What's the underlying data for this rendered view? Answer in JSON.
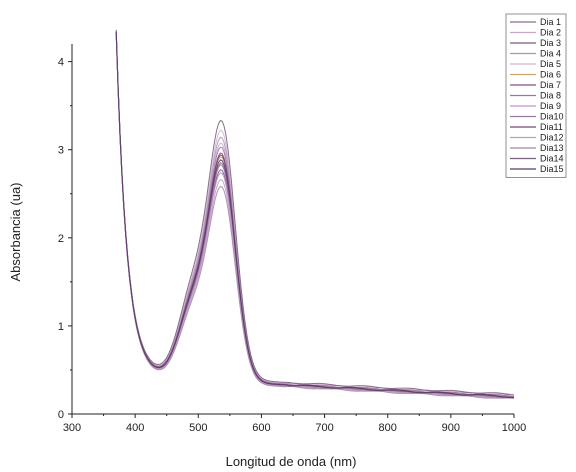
{
  "chart_data": {
    "type": "line",
    "xlabel": "Longitud de onda (nm)",
    "ylabel": "Absorbancia (ua)",
    "xlim": [
      300,
      1000
    ],
    "ylim": [
      0,
      4.2
    ],
    "xticks": [
      "300",
      "400",
      "500",
      "600",
      "700",
      "800",
      "900",
      "1000"
    ],
    "yticks": [
      "0",
      "1",
      "2",
      "3",
      "4"
    ],
    "grid": false,
    "legend_position": "top-right",
    "series": [
      {
        "name": "Dia 1",
        "color": "#8c6d8c",
        "peak": 2.62
      },
      {
        "name": "Dia 2",
        "color": "#c8a8c8",
        "peak": 2.82
      },
      {
        "name": "Dia 3",
        "color": "#7a5a7a",
        "peak": 2.55
      },
      {
        "name": "Dia 4",
        "color": "#b090b8",
        "peak": 2.88
      },
      {
        "name": "Dia 5",
        "color": "#d0b4d0",
        "peak": 2.95
      },
      {
        "name": "Dia 6",
        "color": "#c9a96e",
        "peak": 2.68
      },
      {
        "name": "Dia 7",
        "color": "#8a4a8a",
        "peak": 2.72
      },
      {
        "name": "Dia 8",
        "color": "#a070a8",
        "peak": 2.6
      },
      {
        "name": "Dia 9",
        "color": "#c090c8",
        "peak": 2.52
      },
      {
        "name": "Dia10",
        "color": "#9a7aa0",
        "peak": 2.78
      },
      {
        "name": "Dia11",
        "color": "#704870",
        "peak": 2.7
      },
      {
        "name": "Dia12",
        "color": "#b8a0c0",
        "peak": 2.45
      },
      {
        "name": "Dia13",
        "color": "#a888a8",
        "peak": 2.38
      },
      {
        "name": "Dia14",
        "color": "#7a6080",
        "peak": 3.05
      },
      {
        "name": "Dia15",
        "color": "#5a3a6a",
        "peak": 2.65
      }
    ]
  }
}
